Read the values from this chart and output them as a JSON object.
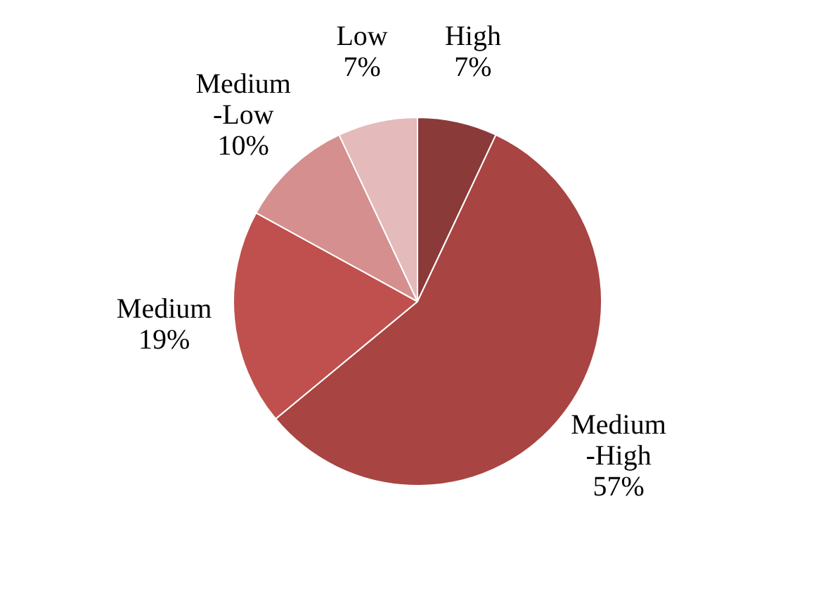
{
  "chart_data": {
    "type": "pie",
    "categories": [
      "High",
      "Medium-High",
      "Medium",
      "Medium-Low",
      "Low"
    ],
    "values": [
      7,
      57,
      19,
      10,
      7
    ],
    "value_labels": [
      "7%",
      "57%",
      "19%",
      "10%",
      "7%"
    ],
    "colors": [
      "#8b3a3a",
      "#a84442",
      "#c0504d",
      "#d48f8e",
      "#e4baba"
    ],
    "legend": false
  }
}
